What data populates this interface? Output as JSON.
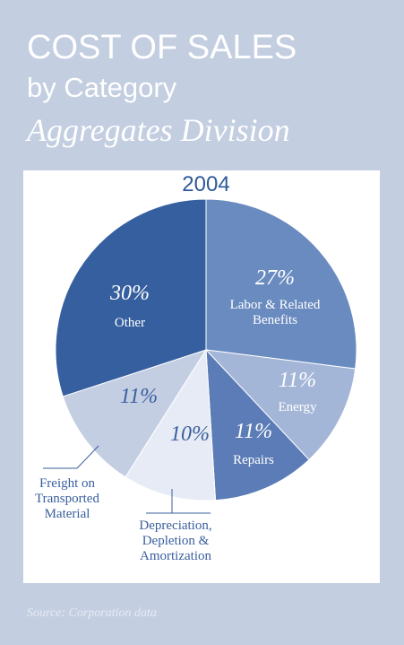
{
  "chart_data": {
    "type": "pie",
    "title": "COST OF SALES",
    "subtitle": "by Category",
    "division": "Aggregates Division",
    "year": "2004",
    "categories": [
      "Labor & Related Benefits",
      "Energy",
      "Repairs",
      "Depreciation, Depletion & Amortization",
      "Freight on Transported Material",
      "Other"
    ],
    "values": [
      27,
      11,
      11,
      10,
      11,
      30
    ],
    "value_labels": [
      "27%",
      "11%",
      "11%",
      "10%",
      "11%",
      "30%"
    ],
    "colors": [
      "#6a8bbf",
      "#a4b6d7",
      "#5b7cb6",
      "#e7ebf5",
      "#c3cee3",
      "#355f9f"
    ],
    "source": "Source: Corporation data"
  }
}
